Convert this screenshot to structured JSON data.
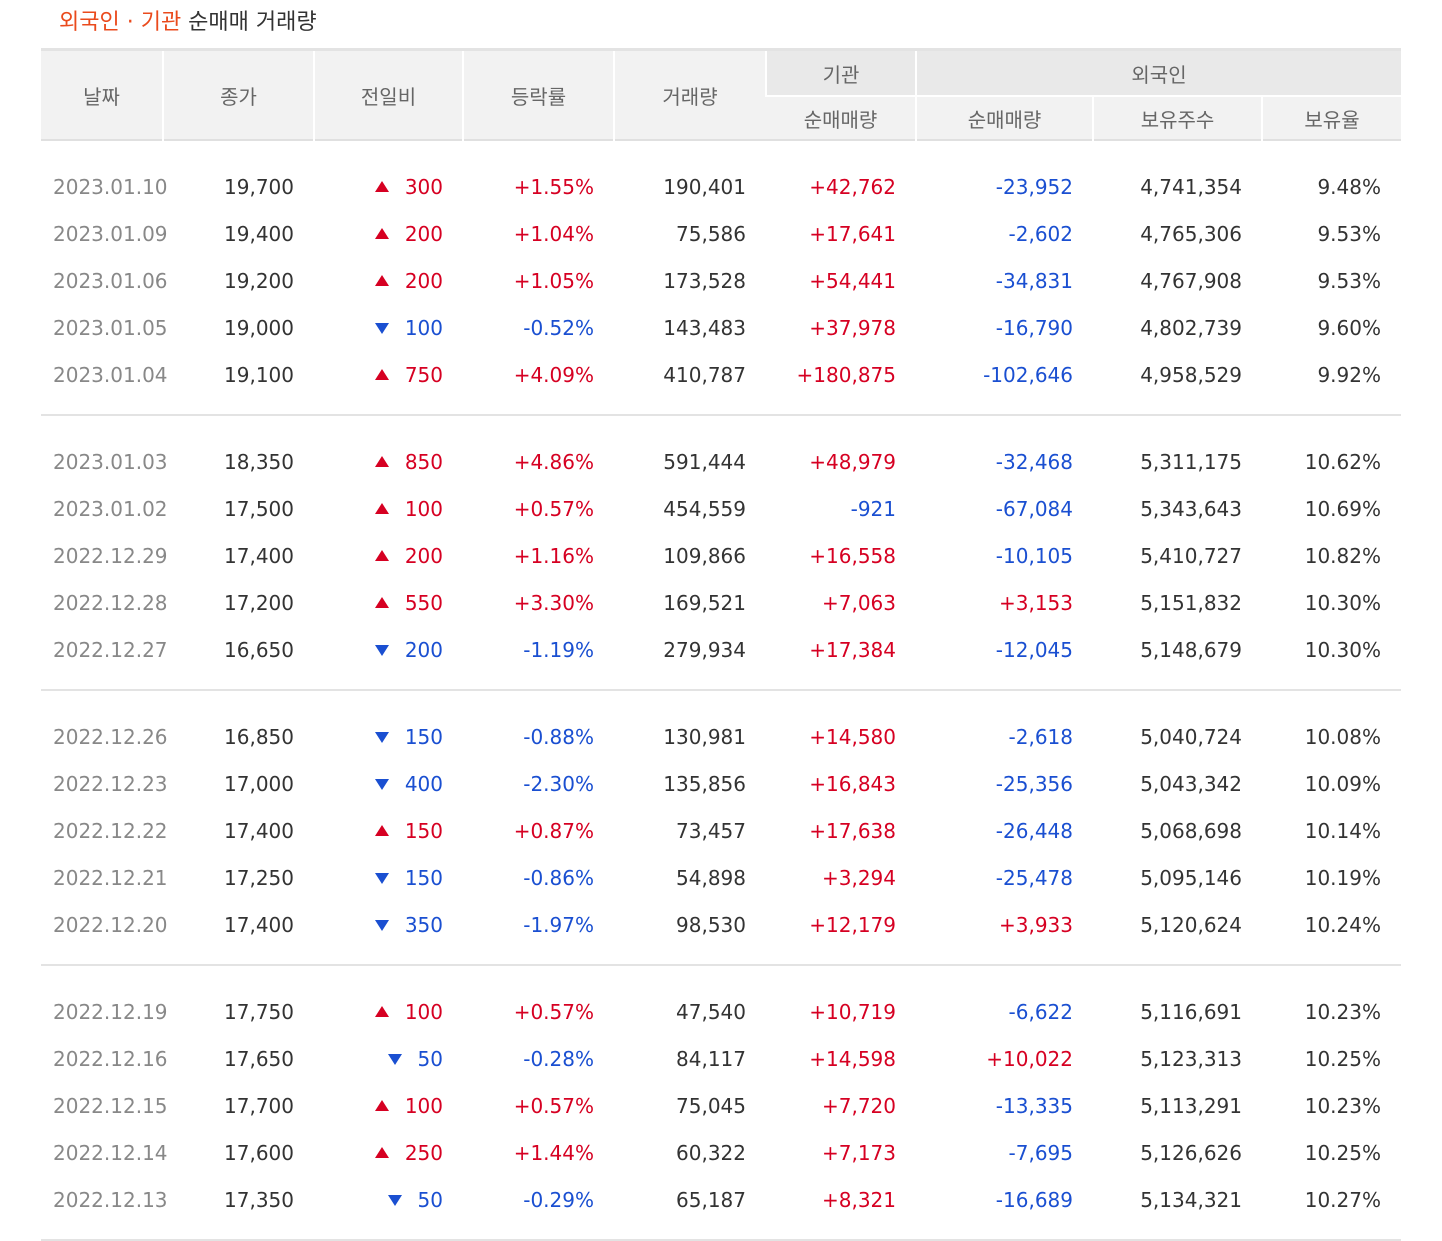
{
  "title": {
    "highlight": "외국인 · 기관",
    "rest": " 순매매 거래량"
  },
  "headers": {
    "date": "날짜",
    "close": "종가",
    "change": "전일비",
    "rate": "등락률",
    "volume": "거래량",
    "inst_group": "기관",
    "inst_net": "순매매량",
    "foreign_group": "외국인",
    "foreign_net": "순매매량",
    "foreign_shares": "보유주수",
    "foreign_ratio": "보유율"
  },
  "colors": {
    "up": "#d60022",
    "down": "#1a4fd1",
    "highlight": "#ea4a1c"
  },
  "groups": [
    [
      {
        "date": "2023.01.10",
        "close": "19,700",
        "dir": "up",
        "change": "300",
        "rate": "+1.55%",
        "volume": "190,401",
        "inst": "+42,762",
        "foreign": "-23,952",
        "shares": "4,741,354",
        "ratio": "9.48%"
      },
      {
        "date": "2023.01.09",
        "close": "19,400",
        "dir": "up",
        "change": "200",
        "rate": "+1.04%",
        "volume": "75,586",
        "inst": "+17,641",
        "foreign": "-2,602",
        "shares": "4,765,306",
        "ratio": "9.53%"
      },
      {
        "date": "2023.01.06",
        "close": "19,200",
        "dir": "up",
        "change": "200",
        "rate": "+1.05%",
        "volume": "173,528",
        "inst": "+54,441",
        "foreign": "-34,831",
        "shares": "4,767,908",
        "ratio": "9.53%"
      },
      {
        "date": "2023.01.05",
        "close": "19,000",
        "dir": "down",
        "change": "100",
        "rate": "-0.52%",
        "volume": "143,483",
        "inst": "+37,978",
        "foreign": "-16,790",
        "shares": "4,802,739",
        "ratio": "9.60%"
      },
      {
        "date": "2023.01.04",
        "close": "19,100",
        "dir": "up",
        "change": "750",
        "rate": "+4.09%",
        "volume": "410,787",
        "inst": "+180,875",
        "foreign": "-102,646",
        "shares": "4,958,529",
        "ratio": "9.92%"
      }
    ],
    [
      {
        "date": "2023.01.03",
        "close": "18,350",
        "dir": "up",
        "change": "850",
        "rate": "+4.86%",
        "volume": "591,444",
        "inst": "+48,979",
        "foreign": "-32,468",
        "shares": "5,311,175",
        "ratio": "10.62%"
      },
      {
        "date": "2023.01.02",
        "close": "17,500",
        "dir": "up",
        "change": "100",
        "rate": "+0.57%",
        "volume": "454,559",
        "inst": "-921",
        "foreign": "-67,084",
        "shares": "5,343,643",
        "ratio": "10.69%"
      },
      {
        "date": "2022.12.29",
        "close": "17,400",
        "dir": "up",
        "change": "200",
        "rate": "+1.16%",
        "volume": "109,866",
        "inst": "+16,558",
        "foreign": "-10,105",
        "shares": "5,410,727",
        "ratio": "10.82%"
      },
      {
        "date": "2022.12.28",
        "close": "17,200",
        "dir": "up",
        "change": "550",
        "rate": "+3.30%",
        "volume": "169,521",
        "inst": "+7,063",
        "foreign": "+3,153",
        "shares": "5,151,832",
        "ratio": "10.30%"
      },
      {
        "date": "2022.12.27",
        "close": "16,650",
        "dir": "down",
        "change": "200",
        "rate": "-1.19%",
        "volume": "279,934",
        "inst": "+17,384",
        "foreign": "-12,045",
        "shares": "5,148,679",
        "ratio": "10.30%"
      }
    ],
    [
      {
        "date": "2022.12.26",
        "close": "16,850",
        "dir": "down",
        "change": "150",
        "rate": "-0.88%",
        "volume": "130,981",
        "inst": "+14,580",
        "foreign": "-2,618",
        "shares": "5,040,724",
        "ratio": "10.08%"
      },
      {
        "date": "2022.12.23",
        "close": "17,000",
        "dir": "down",
        "change": "400",
        "rate": "-2.30%",
        "volume": "135,856",
        "inst": "+16,843",
        "foreign": "-25,356",
        "shares": "5,043,342",
        "ratio": "10.09%"
      },
      {
        "date": "2022.12.22",
        "close": "17,400",
        "dir": "up",
        "change": "150",
        "rate": "+0.87%",
        "volume": "73,457",
        "inst": "+17,638",
        "foreign": "-26,448",
        "shares": "5,068,698",
        "ratio": "10.14%"
      },
      {
        "date": "2022.12.21",
        "close": "17,250",
        "dir": "down",
        "change": "150",
        "rate": "-0.86%",
        "volume": "54,898",
        "inst": "+3,294",
        "foreign": "-25,478",
        "shares": "5,095,146",
        "ratio": "10.19%"
      },
      {
        "date": "2022.12.20",
        "close": "17,400",
        "dir": "down",
        "change": "350",
        "rate": "-1.97%",
        "volume": "98,530",
        "inst": "+12,179",
        "foreign": "+3,933",
        "shares": "5,120,624",
        "ratio": "10.24%"
      }
    ],
    [
      {
        "date": "2022.12.19",
        "close": "17,750",
        "dir": "up",
        "change": "100",
        "rate": "+0.57%",
        "volume": "47,540",
        "inst": "+10,719",
        "foreign": "-6,622",
        "shares": "5,116,691",
        "ratio": "10.23%"
      },
      {
        "date": "2022.12.16",
        "close": "17,650",
        "dir": "down",
        "change": "50",
        "rate": "-0.28%",
        "volume": "84,117",
        "inst": "+14,598",
        "foreign": "+10,022",
        "shares": "5,123,313",
        "ratio": "10.25%"
      },
      {
        "date": "2022.12.15",
        "close": "17,700",
        "dir": "up",
        "change": "100",
        "rate": "+0.57%",
        "volume": "75,045",
        "inst": "+7,720",
        "foreign": "-13,335",
        "shares": "5,113,291",
        "ratio": "10.23%"
      },
      {
        "date": "2022.12.14",
        "close": "17,600",
        "dir": "up",
        "change": "250",
        "rate": "+1.44%",
        "volume": "60,322",
        "inst": "+7,173",
        "foreign": "-7,695",
        "shares": "5,126,626",
        "ratio": "10.25%"
      },
      {
        "date": "2022.12.13",
        "close": "17,350",
        "dir": "down",
        "change": "50",
        "rate": "-0.29%",
        "volume": "65,187",
        "inst": "+8,321",
        "foreign": "-16,689",
        "shares": "5,134,321",
        "ratio": "10.27%"
      }
    ]
  ]
}
